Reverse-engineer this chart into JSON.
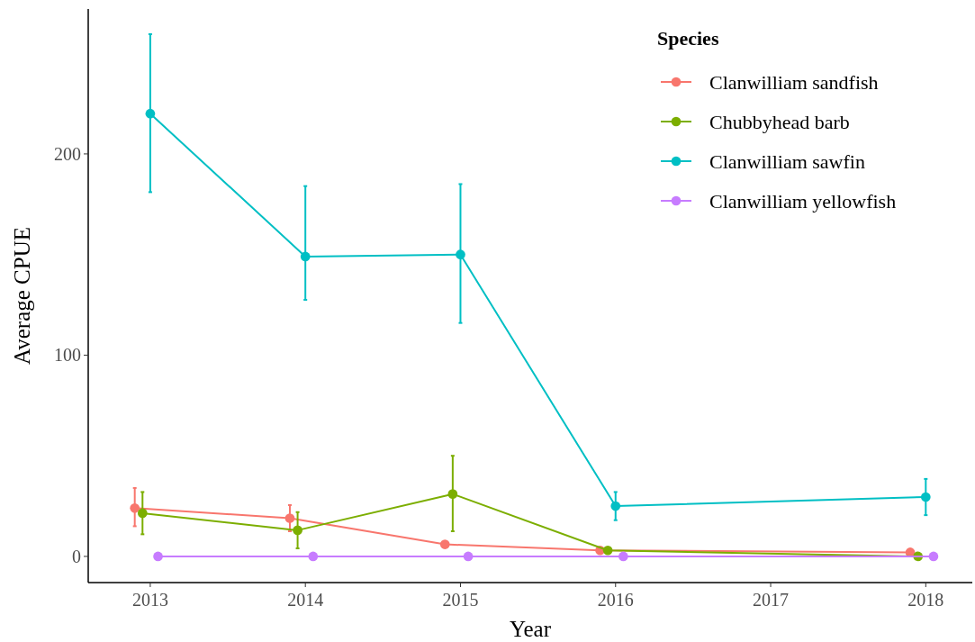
{
  "chart_data": {
    "type": "line",
    "xlabel": "Year",
    "ylabel": "Average CPUE",
    "legend_title": "Species",
    "legend": "top right",
    "marker": "circle",
    "grid": false,
    "xlim": [
      2012.6,
      2018.3
    ],
    "xticks": [
      2013,
      2014,
      2015,
      2016,
      2017,
      2018
    ],
    "ylim": [
      -13,
      272
    ],
    "yticks": [
      0,
      100,
      200
    ],
    "series": [
      {
        "name": "Clanwilliam sandfish",
        "color": "#f8766d",
        "x": [
          2012.9,
          2013.9,
          2014.9,
          2015.9,
          2017.9
        ],
        "values": [
          24,
          19,
          6,
          3,
          2
        ],
        "errors": [
          [
            15,
            34
          ],
          [
            12.5,
            25.5
          ],
          null,
          null,
          null
        ]
      },
      {
        "name": "Chubbyhead barb",
        "color": "#7cae00",
        "x": [
          2012.95,
          2013.95,
          2014.95,
          2015.95,
          2017.95
        ],
        "values": [
          21.5,
          13,
          31,
          3,
          0
        ],
        "errors": [
          [
            11,
            32
          ],
          [
            4,
            22
          ],
          [
            12.5,
            50
          ],
          null,
          null
        ]
      },
      {
        "name": "Clanwilliam sawfin",
        "color": "#00bfc4",
        "x": [
          2013,
          2014,
          2015,
          2016,
          2018
        ],
        "values": [
          220,
          149,
          150,
          25,
          29.5
        ],
        "errors": [
          [
            181,
            259.5
          ],
          [
            127.5,
            184
          ],
          [
            116,
            185
          ],
          [
            18,
            32
          ],
          [
            20.5,
            38.5
          ]
        ]
      },
      {
        "name": "Clanwilliam yellowfish",
        "color": "#c77cff",
        "x": [
          2013.05,
          2014.05,
          2015.05,
          2016.05,
          2018.05
        ],
        "values": [
          0,
          0,
          0,
          0,
          0
        ]
      }
    ]
  }
}
